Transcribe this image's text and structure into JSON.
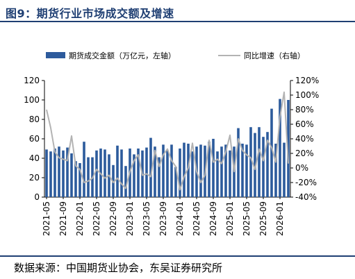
{
  "figure_title": "图9：期货行业市场成交额及增速",
  "source": "数据来源：中国期货业协会，东吴证券研究所",
  "colors": {
    "bar": "#2d5b9c",
    "line": "#b3b3b3",
    "title": "#1f3f73"
  },
  "chart_data": {
    "type": "bar+line",
    "legend_position": "top",
    "grid": false,
    "x_tick_labels": [
      "2021-05",
      "2021-09",
      "2022-01",
      "2022-05",
      "2022-09",
      "2023-01",
      "2023-05",
      "2023-09",
      "2024-01",
      "2024-05",
      "2024-09",
      "2025-01",
      "2025-05",
      "2025-09",
      "2026-01"
    ],
    "y_left": {
      "ticks": [
        "0",
        "20",
        "40",
        "60",
        "80",
        "100",
        "120"
      ],
      "min": 0,
      "max": 120
    },
    "y_right": {
      "ticks": [
        "-40%",
        "-20%",
        "0%",
        "20%",
        "40%",
        "60%",
        "80%",
        "100%",
        "120%"
      ],
      "min": -40,
      "max": 120
    },
    "categories": [
      "2021-05",
      "2021-06",
      "2021-07",
      "2021-08",
      "2021-09",
      "2021-10",
      "2021-11",
      "2021-12",
      "2022-01",
      "2022-02",
      "2022-03",
      "2022-04",
      "2022-05",
      "2022-06",
      "2022-07",
      "2022-08",
      "2022-09",
      "2022-10",
      "2022-11",
      "2022-12",
      "2023-01",
      "2023-02",
      "2023-03",
      "2023-04",
      "2023-05",
      "2023-06",
      "2023-07",
      "2023-08",
      "2023-09",
      "2023-10",
      "2023-11",
      "2023-12",
      "2024-01",
      "2024-02",
      "2024-03",
      "2024-04",
      "2024-05",
      "2024-06",
      "2024-07",
      "2024-08",
      "2024-09",
      "2024-10",
      "2024-11",
      "2024-12",
      "2025-01",
      "2025-02",
      "2025-03",
      "2025-04",
      "2025-05",
      "2025-06",
      "2025-07",
      "2025-08",
      "2025-09",
      "2025-10",
      "2025-11",
      "2025-12",
      "2026-01",
      "2026-02",
      "2026-03"
    ],
    "series": [
      {
        "name": "期货成交金额（万亿元，左轴）",
        "type": "bar",
        "axis": "left",
        "values": [
          49,
          47,
          50,
          52,
          48,
          51,
          45,
          37,
          35,
          57,
          41,
          41,
          48,
          50,
          49,
          44,
          33,
          53,
          49,
          32,
          50,
          44,
          50,
          48,
          51,
          61,
          52,
          41,
          54,
          48,
          54,
          31,
          50,
          56,
          55,
          47,
          52,
          54,
          53,
          57,
          60,
          47,
          52,
          54,
          48,
          52,
          71,
          55,
          54,
          72,
          66,
          72,
          62,
          67,
          91,
          55,
          101,
          56,
          100
        ]
      },
      {
        "name": "同比增速（右轴）",
        "type": "line",
        "axis": "right",
        "values": [
          80,
          55,
          22,
          14,
          12,
          10,
          44,
          3,
          -2,
          -20,
          -18,
          -14,
          -2,
          -8,
          -14,
          -10,
          -20,
          -14,
          -22,
          -28,
          -5,
          10,
          18,
          -10,
          -8,
          -12,
          24,
          2,
          18,
          26,
          10,
          2,
          -30,
          -12,
          0,
          34,
          -5,
          -20,
          -10,
          38,
          8,
          12,
          6,
          22,
          45,
          -5,
          40,
          24,
          18,
          14,
          -2,
          26,
          10,
          38,
          28,
          8,
          70,
          104,
          6
        ]
      }
    ]
  }
}
